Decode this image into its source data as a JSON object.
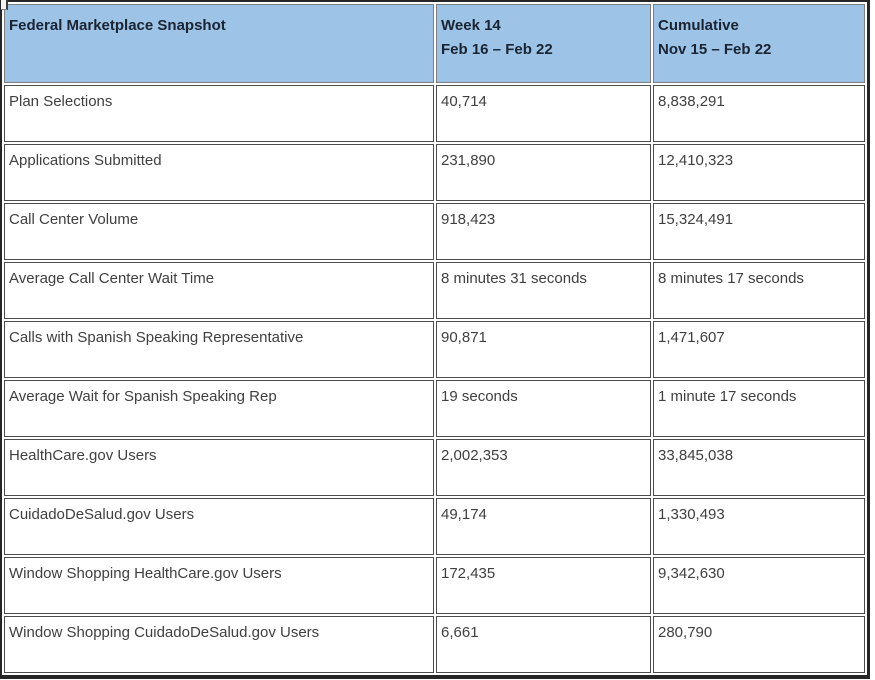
{
  "colors": {
    "header_bg": "#9DC3E6",
    "header_text": "#1A2433",
    "body_text": "#404040",
    "outer_border": "#262626",
    "cell_border": "#4d4d4d"
  },
  "table": {
    "header": {
      "title": "Federal Marketplace Snapshot",
      "week_label": "Week 14",
      "week_period": "Feb 16 – Feb 22",
      "cumulative_label": "Cumulative",
      "cumulative_period": "Nov 15 – Feb 22"
    },
    "rows": [
      {
        "metric": "Plan Selections",
        "week": "40,714",
        "cumulative": "8,838,291"
      },
      {
        "metric": "Applications Submitted",
        "week": "231,890",
        "cumulative": "12,410,323"
      },
      {
        "metric": "Call Center Volume",
        "week": "918,423",
        "cumulative": "15,324,491"
      },
      {
        "metric": "Average Call Center Wait Time",
        "week": "8 minutes 31 seconds",
        "cumulative": "8 minutes 17 seconds"
      },
      {
        "metric": "Calls with Spanish Speaking Representative",
        "week": "90,871",
        "cumulative": "1,471,607"
      },
      {
        "metric": "Average Wait for Spanish Speaking Rep",
        "week": "19 seconds",
        "cumulative": "1 minute 17 seconds"
      },
      {
        "metric": "HealthCare.gov Users",
        "week": "2,002,353",
        "cumulative": "33,845,038"
      },
      {
        "metric": "CuidadoDeSalud.gov Users",
        "week": "49,174",
        "cumulative": "1,330,493"
      },
      {
        "metric": "Window Shopping HealthCare.gov Users",
        "week": "172,435",
        "cumulative": "9,342,630"
      },
      {
        "metric": "Window Shopping CuidadoDeSalud.gov Users",
        "week": "6,661",
        "cumulative": "280,790"
      }
    ]
  }
}
